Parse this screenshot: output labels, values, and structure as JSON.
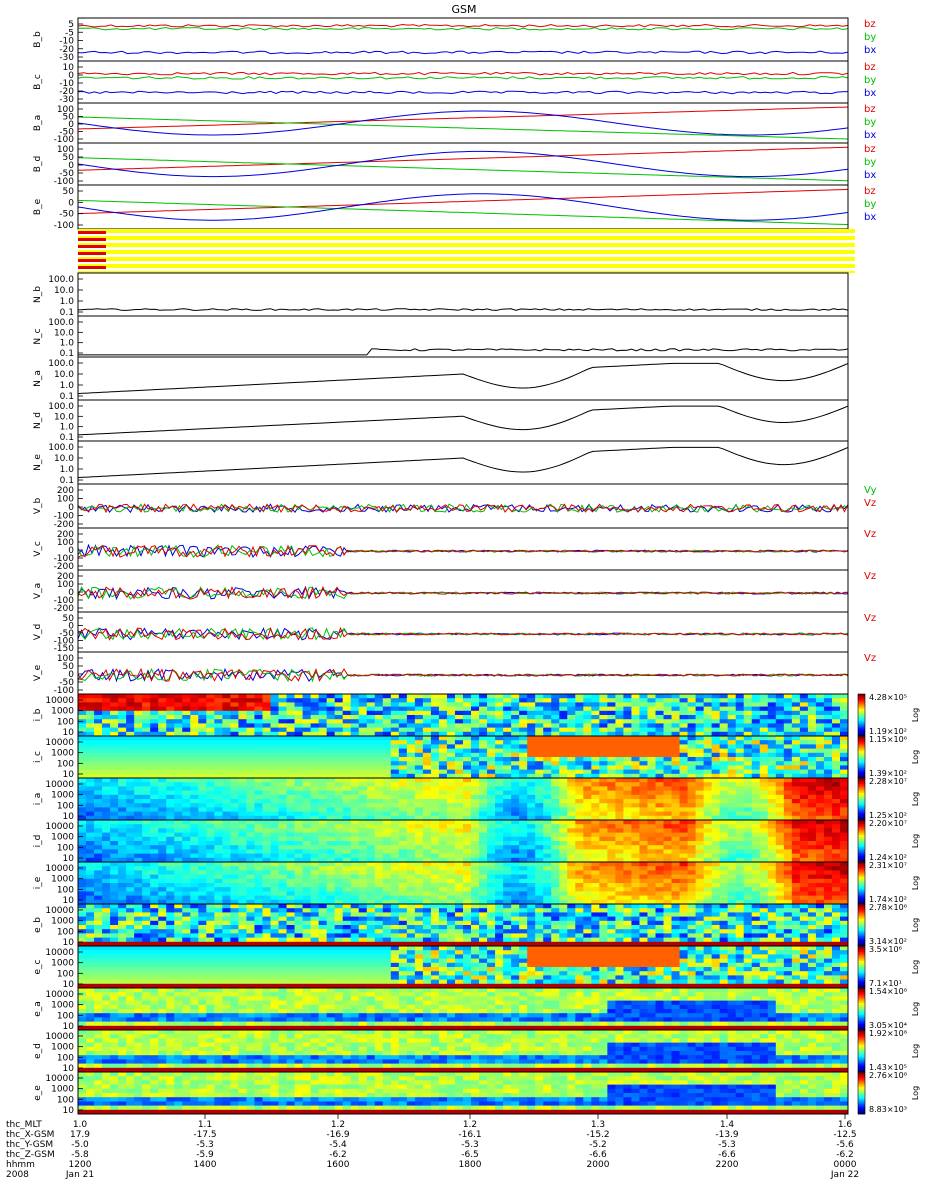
{
  "title": "GSM",
  "chart_data": {
    "type": "line",
    "title": "GSM",
    "x_time_range": [
      "2008-01-21 12:00",
      "2008-01-22 00:00"
    ],
    "panels": [
      {
        "id": "B_b",
        "kind": "line",
        "ylabel": "B_b",
        "ticks": [
          "5",
          "-5",
          "-10",
          "-20",
          "-30"
        ],
        "legend": [
          "bz",
          "by",
          "bx"
        ],
        "legend_colors": [
          "#e00000",
          "#00c000",
          "#0000e0"
        ],
        "series": [
          {
            "name": "bz",
            "level": 0.82,
            "color": "#e00000"
          },
          {
            "name": "by",
            "level": 0.75,
            "color": "#00c000"
          },
          {
            "name": "bx",
            "level": 0.2,
            "color": "#0000e0"
          }
        ]
      },
      {
        "id": "B_c",
        "kind": "line",
        "ylabel": "B_c",
        "ticks": [
          "10",
          "0",
          "-10",
          "-20",
          "-30"
        ],
        "legend": [
          "bz",
          "by",
          "bx"
        ],
        "legend_colors": [
          "#e00000",
          "#00c000",
          "#0000e0"
        ],
        "series": [
          {
            "name": "bz",
            "level": 0.7,
            "color": "#e00000"
          },
          {
            "name": "by",
            "level": 0.6,
            "color": "#00c000"
          },
          {
            "name": "bx",
            "level": 0.25,
            "color": "#0000e0"
          }
        ]
      },
      {
        "id": "B_a",
        "kind": "line",
        "ylabel": "B_a",
        "ticks": [
          "100",
          "50",
          "0",
          "-50",
          "-100"
        ],
        "legend": [
          "bz",
          "by",
          "bx"
        ],
        "legend_colors": [
          "#e00000",
          "#00c000",
          "#0000e0"
        ],
        "series": [
          {
            "name": "bz",
            "level": 0.55,
            "color": "#e00000"
          },
          {
            "name": "by",
            "level": 0.3,
            "color": "#00c000"
          },
          {
            "name": "bx",
            "level": 0.4,
            "color": "#0000e0"
          }
        ]
      },
      {
        "id": "B_d",
        "kind": "line",
        "ylabel": "B_d",
        "ticks": [
          "100",
          "50",
          "0",
          "-50",
          "-100"
        ],
        "legend": [
          "bz",
          "by",
          "bx"
        ],
        "legend_colors": [
          "#e00000",
          "#00c000",
          "#0000e0"
        ],
        "series": [
          {
            "name": "bz",
            "level": 0.55,
            "color": "#e00000"
          },
          {
            "name": "by",
            "level": 0.3,
            "color": "#00c000"
          },
          {
            "name": "bx",
            "level": 0.4,
            "color": "#0000e0"
          }
        ]
      },
      {
        "id": "B_e",
        "kind": "line",
        "ylabel": "B_e",
        "ticks": [
          "50",
          "0",
          "-50",
          "-100"
        ],
        "legend": [
          "bz",
          "by",
          "bx"
        ],
        "legend_colors": [
          "#e00000",
          "#00c000",
          "#0000e0"
        ],
        "series": [
          {
            "name": "bz",
            "level": 0.55,
            "color": "#e00000"
          },
          {
            "name": "by",
            "level": 0.3,
            "color": "#00c000"
          },
          {
            "name": "bx",
            "level": 0.4,
            "color": "#0000e0"
          }
        ]
      },
      {
        "id": "flags",
        "kind": "flags",
        "ylabel": "",
        "ticks": []
      },
      {
        "id": "N_b",
        "kind": "density",
        "ylabel": "N_b",
        "ticks": [
          "100.0",
          "10.0",
          "1.0",
          "0.1"
        ]
      },
      {
        "id": "N_c",
        "kind": "density",
        "ylabel": "N_c",
        "ticks": [
          "100.0",
          "10.0",
          "1.0",
          "0.1"
        ]
      },
      {
        "id": "N_a",
        "kind": "density",
        "ylabel": "N_a",
        "ticks": [
          "100.0",
          "10.0",
          "1.0",
          "0.1"
        ]
      },
      {
        "id": "N_d",
        "kind": "density",
        "ylabel": "N_d",
        "ticks": [
          "100.0",
          "10.0",
          "1.0",
          "0.1"
        ]
      },
      {
        "id": "N_e",
        "kind": "density",
        "ylabel": "N_e",
        "ticks": [
          "100.0",
          "10.0",
          "1.0",
          "0.1"
        ]
      },
      {
        "id": "V_b",
        "kind": "velocity",
        "ylabel": "V_b",
        "ticks": [
          "200",
          "100",
          "0",
          "-100",
          "-200"
        ],
        "legend": [
          "Vy",
          "Vz"
        ],
        "legend_colors": [
          "#00c000",
          "#e00000"
        ]
      },
      {
        "id": "V_c",
        "kind": "velocity",
        "ylabel": "V_c",
        "ticks": [
          "200",
          "100",
          "0",
          "-100",
          "-200"
        ],
        "legend": [
          "Vz"
        ],
        "legend_colors": [
          "#e00000"
        ]
      },
      {
        "id": "V_a",
        "kind": "velocity",
        "ylabel": "V_a",
        "ticks": [
          "200",
          "100",
          "0",
          "-100",
          "-200"
        ],
        "legend": [
          "Vz"
        ],
        "legend_colors": [
          "#e00000"
        ]
      },
      {
        "id": "V_d",
        "kind": "velocity",
        "ylabel": "V_d",
        "ticks": [
          "50",
          "0",
          "-50",
          "-100",
          "-150"
        ],
        "legend": [
          "Vz"
        ],
        "legend_colors": [
          "#e00000"
        ]
      },
      {
        "id": "V_e",
        "kind": "velocity",
        "ylabel": "V_e",
        "ticks": [
          "100",
          "50",
          "0",
          "-50",
          "-100"
        ],
        "legend": [
          "Vz"
        ],
        "legend_colors": [
          "#e00000"
        ]
      },
      {
        "id": "i_b",
        "kind": "spectrogram",
        "ylabel": "i_b",
        "ticks": [
          "10000",
          "1000",
          "100",
          "10"
        ],
        "cmax": "4.28×10⁵",
        "cmin": "1.19×10²"
      },
      {
        "id": "i_c",
        "kind": "spectrogram",
        "ylabel": "i_c",
        "ticks": [
          "10000",
          "1000",
          "100",
          "10"
        ],
        "cmax": "1.15×10⁶",
        "cmin": "1.39×10²"
      },
      {
        "id": "i_a",
        "kind": "spectrogram",
        "ylabel": "i_a",
        "ticks": [
          "10000",
          "1000",
          "100",
          "10"
        ],
        "cmax": "2.28×10⁷",
        "cmin": "1.25×10²"
      },
      {
        "id": "i_d",
        "kind": "spectrogram",
        "ylabel": "i_d",
        "ticks": [
          "10000",
          "1000",
          "100",
          "10"
        ],
        "cmax": "2.20×10⁷",
        "cmin": "1.24×10²"
      },
      {
        "id": "i_e",
        "kind": "spectrogram",
        "ylabel": "i_e",
        "ticks": [
          "10000",
          "1000",
          "100",
          "10"
        ],
        "cmax": "2.31×10⁷",
        "cmin": "1.74×10²"
      },
      {
        "id": "e_b",
        "kind": "spectrogram",
        "ylabel": "e_b",
        "ticks": [
          "10000",
          "1000",
          "100",
          "10"
        ],
        "cmax": "2.78×10⁶",
        "cmin": "3.14×10²"
      },
      {
        "id": "e_c",
        "kind": "spectrogram",
        "ylabel": "e_c",
        "ticks": [
          "10000",
          "1000",
          "100",
          "10"
        ],
        "cmax": "3.5×10⁶",
        "cmin": "7.1×10¹"
      },
      {
        "id": "e_a",
        "kind": "spectrogram",
        "ylabel": "e_a",
        "ticks": [
          "10000",
          "1000",
          "100",
          "10"
        ],
        "cmax": "1.54×10⁸",
        "cmin": "3.05×10⁴"
      },
      {
        "id": "e_d",
        "kind": "spectrogram",
        "ylabel": "e_d",
        "ticks": [
          "10000",
          "1000",
          "100",
          "10"
        ],
        "cmax": "1.92×10⁸",
        "cmin": "1.43×10⁵"
      },
      {
        "id": "e_e",
        "kind": "spectrogram",
        "ylabel": "e_e",
        "ticks": [
          "10000",
          "1000",
          "100",
          "10"
        ],
        "cmax": "2.76×10⁸",
        "cmin": "8.83×10³"
      }
    ],
    "colorbar_label": "Log",
    "x_axis": {
      "row_labels": [
        "thc_MLT",
        "thc_X-GSM",
        "thc_Y-GSM",
        "thc_Z-GSM",
        "hhmm",
        "2008"
      ],
      "first_values": [
        "1.0",
        "17.9",
        "-5.0",
        "-5.8",
        "1200",
        "Jan 21"
      ],
      "columns": [
        [
          "1.1",
          "-17.5",
          "-5.3",
          "-5.9",
          "1400",
          ""
        ],
        [
          "1.2",
          "-16.9",
          "-5.4",
          "-6.2",
          "1600",
          ""
        ],
        [
          "1.2",
          "-16.1",
          "-5.3",
          "-6.5",
          "1800",
          ""
        ],
        [
          "1.3",
          "-15.2",
          "-5.2",
          "-6.6",
          "2000",
          ""
        ],
        [
          "1.4",
          "-13.9",
          "-5.3",
          "-6.6",
          "2200",
          ""
        ],
        [
          "1.6",
          "-12.5",
          "-5.6",
          "-6.2",
          "0000",
          "Jan 22"
        ]
      ]
    }
  }
}
